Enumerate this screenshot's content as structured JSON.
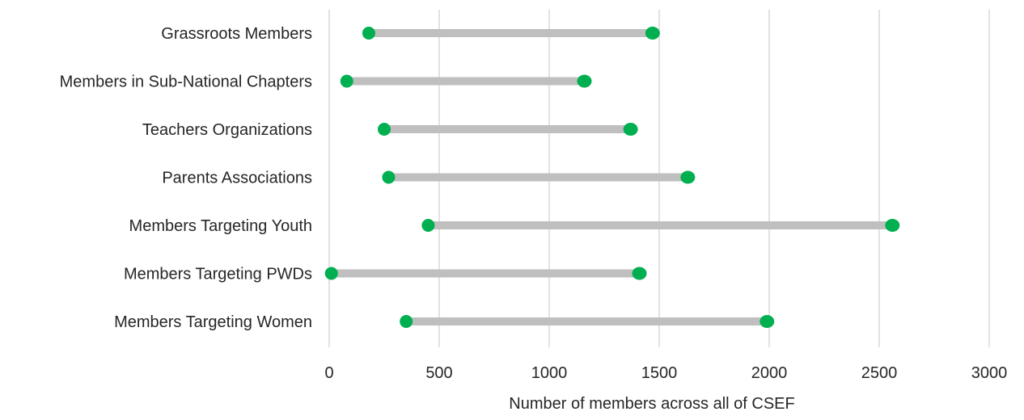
{
  "chart_data": {
    "type": "dumbbell",
    "xlabel": "Number of members across all of CSEF",
    "ylabel": "",
    "xlim": [
      0,
      3000
    ],
    "x_ticks": [
      "0",
      "500",
      "1000",
      "1500",
      "2000",
      "2500",
      "3000"
    ],
    "x_tick_values": [
      0,
      500,
      1000,
      1500,
      2000,
      2500,
      3000
    ],
    "grid": "vertical",
    "categories": [
      "Grassroots Members",
      "Members in Sub-National Chapters",
      "Teachers Organizations",
      "Parents Associations",
      "Members Targeting Youth",
      "Members Targeting PWDs",
      "Members Targeting Women"
    ],
    "low": [
      180,
      80,
      250,
      270,
      450,
      10,
      350
    ],
    "high": [
      1470,
      1160,
      1370,
      1630,
      2560,
      1410,
      1990
    ],
    "colors": {
      "marker": "#00b050",
      "range_line": "#bfbfbf",
      "grid": "#d9d9d9",
      "text": "#262626"
    }
  }
}
